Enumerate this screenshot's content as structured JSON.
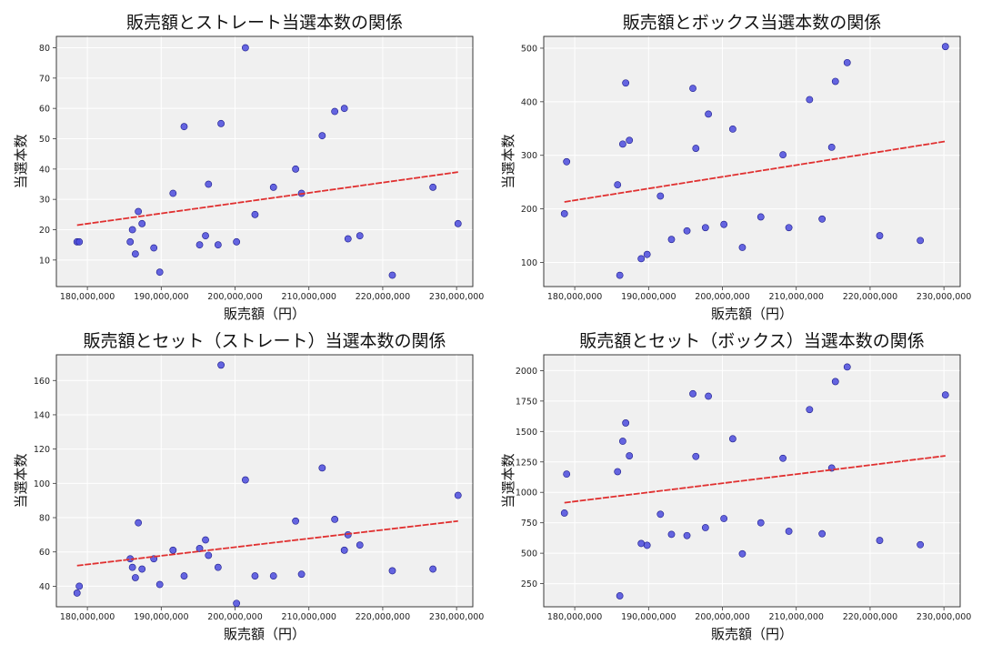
{
  "colors": {
    "point": "#4b4bdd",
    "trend": "#e03030",
    "panel_bg": "#f0f0f0",
    "grid": "#ffffff"
  },
  "chart_data": [
    {
      "type": "scatter",
      "title": "販売額とストレート当選本数の関係",
      "xlabel": "販売額（円）",
      "ylabel": "当選本数",
      "xlim": [
        175800000,
        232200000
      ],
      "ylim": [
        1.25,
        83.75
      ],
      "xticks": [
        180000000,
        190000000,
        200000000,
        210000000,
        220000000,
        230000000
      ],
      "xtick_labels": [
        "180,000,000",
        "190,000,000",
        "200,000,000",
        "210,000,000",
        "220,000,000",
        "230,000,000"
      ],
      "yticks": [
        10,
        20,
        30,
        40,
        50,
        60,
        70,
        80
      ],
      "ytick_labels": [
        "10",
        "20",
        "30",
        "40",
        "50",
        "60",
        "70",
        "80"
      ],
      "grid": true,
      "x": [
        178600000,
        178900000,
        185800000,
        186100000,
        186500000,
        186900000,
        187400000,
        189000000,
        189800000,
        191600000,
        193100000,
        195200000,
        196000000,
        196400000,
        197700000,
        198100000,
        200200000,
        201400000,
        202700000,
        205200000,
        208200000,
        209000000,
        211800000,
        213500000,
        214800000,
        215300000,
        216900000,
        221300000,
        226800000,
        230200000
      ],
      "y": [
        16,
        16,
        16,
        20,
        12,
        26,
        22,
        14,
        6,
        32,
        54,
        15,
        18,
        35,
        15,
        55,
        16,
        80,
        25,
        34,
        40,
        32,
        51,
        59,
        60,
        17,
        18,
        5,
        34,
        22
      ],
      "trend": {
        "x": [
          178600000,
          230200000
        ],
        "y": [
          21.5,
          39
        ]
      }
    },
    {
      "type": "scatter",
      "title": "販売額とボックス当選本数の関係",
      "xlabel": "販売額（円）",
      "ylabel": "当選本数",
      "xlim": [
        175800000,
        232200000
      ],
      "ylim": [
        55,
        522
      ],
      "xticks": [
        180000000,
        190000000,
        200000000,
        210000000,
        220000000,
        230000000
      ],
      "xtick_labels": [
        "180,000,000",
        "190,000,000",
        "200,000,000",
        "210,000,000",
        "220,000,000",
        "230,000,000"
      ],
      "yticks": [
        100,
        200,
        300,
        400,
        500
      ],
      "ytick_labels": [
        "100",
        "200",
        "300",
        "400",
        "500"
      ],
      "grid": true,
      "x": [
        178600000,
        178900000,
        185800000,
        186100000,
        186500000,
        186900000,
        187400000,
        189000000,
        189800000,
        191600000,
        193100000,
        195200000,
        196000000,
        196400000,
        197700000,
        198100000,
        200200000,
        201400000,
        202700000,
        205200000,
        208200000,
        209000000,
        211800000,
        213500000,
        214800000,
        215300000,
        216900000,
        221300000,
        226800000,
        230200000
      ],
      "y": [
        191,
        288,
        245,
        76,
        321,
        435,
        328,
        107,
        115,
        224,
        143,
        159,
        425,
        313,
        165,
        377,
        171,
        349,
        128,
        185,
        301,
        165,
        404,
        181,
        315,
        438,
        473,
        150,
        141,
        503
      ],
      "trend": {
        "x": [
          178600000,
          230200000
        ],
        "y": [
          213,
          326
        ]
      }
    },
    {
      "type": "scatter",
      "title": "販売額とセット（ストレート）当選本数の関係",
      "xlabel": "販売額（円）",
      "ylabel": "当選本数",
      "xlim": [
        175800000,
        232200000
      ],
      "ylim": [
        28,
        175
      ],
      "xticks": [
        180000000,
        190000000,
        200000000,
        210000000,
        220000000,
        230000000
      ],
      "xtick_labels": [
        "180,000,000",
        "190,000,000",
        "200,000,000",
        "210,000,000",
        "220,000,000",
        "230,000,000"
      ],
      "yticks": [
        40,
        60,
        80,
        100,
        120,
        140,
        160
      ],
      "ytick_labels": [
        "40",
        "60",
        "80",
        "100",
        "120",
        "140",
        "160"
      ],
      "grid": true,
      "x": [
        178600000,
        178900000,
        185800000,
        186100000,
        186500000,
        186900000,
        187400000,
        189000000,
        189800000,
        191600000,
        193100000,
        195200000,
        196000000,
        196400000,
        197700000,
        198100000,
        200200000,
        201400000,
        202700000,
        205200000,
        208200000,
        209000000,
        211800000,
        213500000,
        214800000,
        215300000,
        216900000,
        221300000,
        226800000,
        230200000
      ],
      "y": [
        36,
        40,
        56,
        51,
        45,
        77,
        50,
        56,
        41,
        61,
        46,
        62,
        67,
        58,
        51,
        169,
        30,
        102,
        46,
        46,
        78,
        47,
        109,
        79,
        61,
        70,
        64,
        49,
        50,
        93
      ],
      "trend": {
        "x": [
          178600000,
          230200000
        ],
        "y": [
          52,
          78
        ]
      }
    },
    {
      "type": "scatter",
      "title": "販売額とセット（ボックス）当選本数の関係",
      "xlabel": "販売額（円）",
      "ylabel": "当選本数",
      "xlim": [
        175800000,
        232200000
      ],
      "ylim": [
        60,
        2130
      ],
      "xticks": [
        180000000,
        190000000,
        200000000,
        210000000,
        220000000,
        230000000
      ],
      "xtick_labels": [
        "180,000,000",
        "190,000,000",
        "200,000,000",
        "210,000,000",
        "220,000,000",
        "230,000,000"
      ],
      "yticks": [
        250,
        500,
        750,
        1000,
        1250,
        1500,
        1750,
        2000
      ],
      "ytick_labels": [
        "250",
        "500",
        "750",
        "1000",
        "1250",
        "1500",
        "1750",
        "2000"
      ],
      "grid": true,
      "x": [
        178600000,
        178900000,
        185800000,
        186100000,
        186500000,
        186900000,
        187400000,
        189000000,
        189800000,
        191600000,
        193100000,
        195200000,
        196000000,
        196400000,
        197700000,
        198100000,
        200200000,
        201400000,
        202700000,
        205200000,
        208200000,
        209000000,
        211800000,
        213500000,
        214800000,
        215300000,
        216900000,
        221300000,
        226800000,
        230200000
      ],
      "y": [
        830,
        1150,
        1170,
        150,
        1420,
        1570,
        1300,
        580,
        565,
        820,
        655,
        645,
        1810,
        1295,
        710,
        1790,
        785,
        1440,
        495,
        750,
        1280,
        680,
        1680,
        660,
        1200,
        1910,
        2030,
        605,
        570,
        1800
      ],
      "trend": {
        "x": [
          178600000,
          230200000
        ],
        "y": [
          915,
          1300
        ]
      }
    }
  ]
}
